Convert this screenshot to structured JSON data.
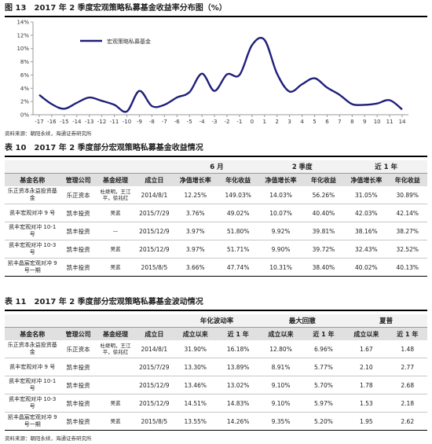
{
  "figure13": {
    "label": "图 13",
    "title": "2017 年 2 季度宏观策略私募基金收益率分布图（%）",
    "source": "资料来源：朝阳永续，海通证券研究所"
  },
  "chart_data": {
    "type": "line",
    "legend": "宏观策略私募基金",
    "ylim": [
      0,
      14
    ],
    "yticks": [
      "0%",
      "2%",
      "4%",
      "6%",
      "8%",
      "10%",
      "12%",
      "14%"
    ],
    "x": [
      -17,
      -16,
      -15,
      -14,
      -13,
      -12,
      -11,
      -10,
      -9,
      -8,
      -7,
      -6,
      -5,
      -4,
      -3,
      -2,
      -1,
      0,
      1,
      2,
      3,
      4,
      5,
      6,
      7,
      8,
      9,
      10,
      11,
      14
    ],
    "series": [
      {
        "name": "宏观策略私募基金",
        "color": "#1f1f7a",
        "values": [
          3.0,
          1.6,
          0.9,
          1.8,
          2.6,
          2.1,
          1.5,
          0.5,
          3.6,
          1.3,
          1.5,
          2.6,
          3.4,
          6.2,
          3.6,
          6.1,
          6.0,
          10.5,
          11.3,
          6.2,
          3.5,
          4.6,
          5.5,
          4.1,
          3.0,
          1.6,
          1.5,
          1.7,
          2.2,
          0.8
        ]
      }
    ]
  },
  "table10": {
    "label": "表 10",
    "title": "2017 年 2 季度部分宏观策略私募基金收益情况",
    "group_headers": [
      "6 月",
      "2 季度",
      "近 1 年"
    ],
    "headers": [
      "基金名称",
      "管理公司",
      "基金经理",
      "成立日",
      "净值增长率",
      "年化收益",
      "净值增长率",
      "年化收益",
      "净值增长率",
      "年化收益"
    ],
    "rows": [
      [
        "乐正资本永益投资基金",
        "乐正资本",
        "杜继明，王江平，徐兆红",
        "2014/8/1",
        "12.25%",
        "149.03%",
        "14.03%",
        "56.26%",
        "31.05%",
        "30.89%"
      ],
      [
        "凯丰宏观对冲 9 号",
        "凯丰投资",
        "吴蓝",
        "2015/7/29",
        "3.76%",
        "49.02%",
        "10.07%",
        "40.40%",
        "42.03%",
        "42.14%"
      ],
      [
        "凯丰宏观对冲 10-1 号",
        "凯丰投资",
        "—",
        "2015/12/9",
        "3.97%",
        "51.80%",
        "9.92%",
        "39.81%",
        "38.16%",
        "38.27%"
      ],
      [
        "凯丰宏观对冲 10-3 号",
        "凯丰投资",
        "吴蓝",
        "2015/12/9",
        "3.97%",
        "51.71%",
        "9.90%",
        "39.72%",
        "32.43%",
        "32.52%"
      ],
      [
        "凯丰晶宸宏观对冲 9 号一期",
        "凯丰投资",
        "吴蓝",
        "2015/8/5",
        "3.66%",
        "47.74%",
        "10.31%",
        "38.40%",
        "40.02%",
        "40.13%"
      ]
    ],
    "source": "资料来源：朝阳永续，海通证券研究所"
  },
  "table11": {
    "label": "表 11",
    "title": "2017 年 2 季度部分宏观策略私募基金波动情况",
    "group_headers": [
      "年化波动率",
      "最大回撤",
      "夏普"
    ],
    "headers": [
      "基金名称",
      "管理公司",
      "基金经理",
      "成立日",
      "成立以来",
      "近 1 年",
      "成立以来",
      "近 1 年",
      "成立以来",
      "近 1 年"
    ],
    "rows": [
      [
        "乐正资本永益投资基金",
        "乐正资本",
        "杜继明，王江平，徐兆红",
        "2014/8/1",
        "31.90%",
        "16.18%",
        "12.80%",
        "6.96%",
        "1.67",
        "1.48"
      ],
      [
        "凯丰宏观对冲 9 号",
        "凯丰投资",
        "",
        "2015/7/29",
        "13.30%",
        "13.89%",
        "8.91%",
        "5.77%",
        "2.10",
        "2.77"
      ],
      [
        "凯丰宏观对冲 10-1 号",
        "凯丰投资",
        "",
        "2015/12/9",
        "13.46%",
        "13.02%",
        "9.10%",
        "5.70%",
        "1.78",
        "2.68"
      ],
      [
        "凯丰宏观对冲 10-3 号",
        "凯丰投资",
        "吴蓝",
        "2015/12/9",
        "14.51%",
        "14.83%",
        "9.10%",
        "5.97%",
        "1.53",
        "2.18"
      ],
      [
        "凯丰晶宸宏观对冲 9 号一期",
        "凯丰投资",
        "吴蓝",
        "2015/8/5",
        "13.55%",
        "14.26%",
        "9.35%",
        "5.20%",
        "1.95",
        "2.62"
      ]
    ],
    "source": "资料来源：朝阳永续，海通证券研究所"
  }
}
